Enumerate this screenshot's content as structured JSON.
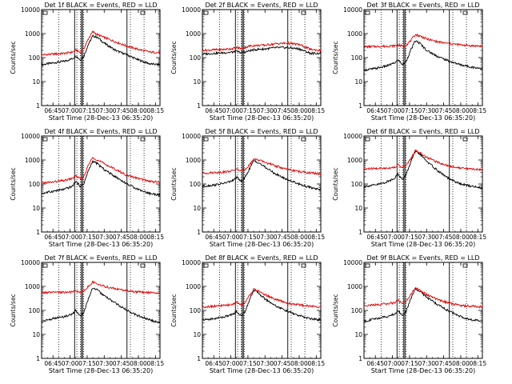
{
  "figure": {
    "xlabel": "Start Time (28-Dec-13 06:35:20)",
    "ylabel": "Counts/sec",
    "legend_text": "BLACK = Events, RED = LLD"
  },
  "axes": {
    "x_ticks": [
      "06:45",
      "07:00",
      "07:15",
      "07:30",
      "07:45",
      "08:00",
      "08:15"
    ],
    "x_range": [
      "06:35",
      "08:19"
    ],
    "y_ticks": [
      "1",
      "10",
      "100",
      "1000",
      "10000"
    ],
    "y_range": [
      1,
      10000
    ],
    "y_scale": "log",
    "dotted_vlines": [
      "06:50",
      "07:06",
      "07:09",
      "07:12",
      "07:53",
      "08:05"
    ],
    "solid_vlines": [
      "07:04",
      "07:10",
      "07:11",
      "07:50"
    ]
  },
  "colors": {
    "events": "#000000",
    "lld": "#dd0000"
  },
  "chart_data": [
    {
      "type": "line",
      "title": "Det 1f",
      "series": [
        {
          "name": "BLACK = Events",
          "x": [
            "06:35",
            "06:45",
            "06:55",
            "07:02",
            "07:05",
            "07:09",
            "07:12",
            "07:16",
            "07:20",
            "07:24",
            "07:30",
            "07:40",
            "07:50",
            "08:00",
            "08:10",
            "08:19"
          ],
          "y": [
            50,
            60,
            70,
            90,
            120,
            80,
            110,
            350,
            800,
            700,
            400,
            200,
            130,
            80,
            55,
            50
          ]
        },
        {
          "name": "RED = LLD",
          "x": [
            "06:35",
            "06:45",
            "06:55",
            "07:02",
            "07:05",
            "07:09",
            "07:12",
            "07:16",
            "07:20",
            "07:24",
            "07:30",
            "07:40",
            "07:50",
            "08:00",
            "08:10",
            "08:19"
          ],
          "y": [
            130,
            140,
            150,
            170,
            210,
            160,
            230,
            600,
            1200,
            900,
            700,
            450,
            300,
            220,
            170,
            160
          ]
        }
      ]
    },
    {
      "type": "line",
      "title": "Det 2f",
      "series": [
        {
          "name": "BLACK = Events",
          "x": [
            "06:35",
            "06:45",
            "06:55",
            "07:02",
            "07:05",
            "07:09",
            "07:12",
            "07:16",
            "07:20",
            "07:24",
            "07:30",
            "07:40",
            "07:50",
            "08:00",
            "08:10",
            "08:19"
          ],
          "y": [
            140,
            150,
            160,
            170,
            180,
            160,
            170,
            190,
            210,
            220,
            230,
            260,
            260,
            230,
            150,
            150
          ]
        },
        {
          "name": "RED = LLD",
          "x": [
            "06:35",
            "06:45",
            "06:55",
            "07:02",
            "07:05",
            "07:09",
            "07:12",
            "07:16",
            "07:20",
            "07:24",
            "07:30",
            "07:40",
            "07:50",
            "08:00",
            "08:10",
            "08:19"
          ],
          "y": [
            200,
            210,
            220,
            240,
            260,
            240,
            260,
            300,
            320,
            320,
            330,
            380,
            400,
            350,
            220,
            200
          ]
        }
      ]
    },
    {
      "type": "line",
      "title": "Det 3f",
      "series": [
        {
          "name": "BLACK = Events",
          "x": [
            "06:35",
            "06:45",
            "06:55",
            "07:02",
            "07:05",
            "07:09",
            "07:12",
            "07:16",
            "07:20",
            "07:24",
            "07:30",
            "07:40",
            "07:50",
            "08:00",
            "08:10",
            "08:19"
          ],
          "y": [
            30,
            35,
            45,
            60,
            80,
            50,
            70,
            200,
            500,
            400,
            200,
            110,
            70,
            50,
            40,
            35
          ]
        },
        {
          "name": "RED = LLD",
          "x": [
            "06:35",
            "06:45",
            "06:55",
            "07:02",
            "07:05",
            "07:09",
            "07:12",
            "07:16",
            "07:20",
            "07:24",
            "07:30",
            "07:40",
            "07:50",
            "08:00",
            "08:10",
            "08:19"
          ],
          "y": [
            280,
            290,
            300,
            310,
            330,
            300,
            330,
            500,
            900,
            800,
            600,
            450,
            380,
            340,
            310,
            300
          ]
        }
      ]
    },
    {
      "type": "line",
      "title": "Det 4f",
      "series": [
        {
          "name": "BLACK = Events",
          "x": [
            "06:35",
            "06:45",
            "06:55",
            "07:02",
            "07:05",
            "07:09",
            "07:12",
            "07:16",
            "07:20",
            "07:24",
            "07:30",
            "07:40",
            "07:50",
            "08:00",
            "08:10",
            "08:19"
          ],
          "y": [
            40,
            50,
            60,
            80,
            130,
            80,
            100,
            350,
            900,
            700,
            400,
            200,
            100,
            60,
            40,
            35
          ]
        },
        {
          "name": "RED = LLD",
          "x": [
            "06:35",
            "06:45",
            "06:55",
            "07:02",
            "07:05",
            "07:09",
            "07:12",
            "07:16",
            "07:20",
            "07:24",
            "07:30",
            "07:40",
            "07:50",
            "08:00",
            "08:10",
            "08:19"
          ],
          "y": [
            110,
            120,
            140,
            170,
            220,
            160,
            200,
            600,
            1300,
            1000,
            700,
            400,
            230,
            170,
            130,
            120
          ]
        }
      ]
    },
    {
      "type": "line",
      "title": "Det 5f",
      "series": [
        {
          "name": "BLACK = Events",
          "x": [
            "06:35",
            "06:45",
            "06:55",
            "07:02",
            "07:05",
            "07:09",
            "07:12",
            "07:16",
            "07:20",
            "07:24",
            "07:30",
            "07:40",
            "07:50",
            "08:00",
            "08:10",
            "08:19"
          ],
          "y": [
            80,
            90,
            110,
            140,
            190,
            130,
            170,
            400,
            900,
            800,
            500,
            250,
            150,
            100,
            70,
            60
          ]
        },
        {
          "name": "RED = LLD",
          "x": [
            "06:35",
            "06:45",
            "06:55",
            "07:02",
            "07:05",
            "07:09",
            "07:12",
            "07:16",
            "07:20",
            "07:24",
            "07:30",
            "07:40",
            "07:50",
            "08:00",
            "08:10",
            "08:19"
          ],
          "y": [
            280,
            300,
            320,
            360,
            420,
            350,
            400,
            600,
            1100,
            1000,
            800,
            550,
            400,
            330,
            290,
            260
          ]
        }
      ]
    },
    {
      "type": "line",
      "title": "Det 6f",
      "series": [
        {
          "name": "BLACK = Events",
          "x": [
            "06:35",
            "06:45",
            "06:55",
            "07:02",
            "07:05",
            "07:09",
            "07:12",
            "07:16",
            "07:20",
            "07:24",
            "07:30",
            "07:40",
            "07:50",
            "08:00",
            "08:10",
            "08:19"
          ],
          "y": [
            80,
            90,
            120,
            180,
            260,
            150,
            250,
            800,
            2200,
            1800,
            900,
            350,
            160,
            100,
            80,
            70
          ]
        },
        {
          "name": "RED = LLD",
          "x": [
            "06:35",
            "06:45",
            "06:55",
            "07:02",
            "07:05",
            "07:09",
            "07:12",
            "07:16",
            "07:20",
            "07:24",
            "07:30",
            "07:40",
            "07:50",
            "08:00",
            "08:10",
            "08:19"
          ],
          "y": [
            420,
            440,
            460,
            500,
            620,
            480,
            600,
            1100,
            2500,
            2000,
            1300,
            800,
            560,
            460,
            420,
            400
          ]
        }
      ]
    },
    {
      "type": "line",
      "title": "Det 7f",
      "series": [
        {
          "name": "BLACK = Events",
          "x": [
            "06:35",
            "06:45",
            "06:55",
            "07:02",
            "07:05",
            "07:09",
            "07:12",
            "07:16",
            "07:20",
            "07:24",
            "07:30",
            "07:40",
            "07:50",
            "08:00",
            "08:10",
            "08:19"
          ],
          "y": [
            35,
            45,
            55,
            70,
            100,
            60,
            80,
            300,
            900,
            700,
            400,
            200,
            100,
            60,
            40,
            30
          ]
        },
        {
          "name": "RED = LLD",
          "x": [
            "06:35",
            "06:45",
            "06:55",
            "07:02",
            "07:05",
            "07:09",
            "07:12",
            "07:16",
            "07:20",
            "07:24",
            "07:30",
            "07:40",
            "07:50",
            "08:00",
            "08:10",
            "08:19"
          ],
          "y": [
            550,
            560,
            570,
            580,
            640,
            560,
            640,
            1000,
            1500,
            1300,
            1000,
            800,
            650,
            580,
            560,
            550
          ]
        }
      ]
    },
    {
      "type": "line",
      "title": "Det 8f",
      "series": [
        {
          "name": "BLACK = Events",
          "x": [
            "06:35",
            "06:45",
            "06:55",
            "07:02",
            "07:05",
            "07:09",
            "07:12",
            "07:16",
            "07:20",
            "07:24",
            "07:30",
            "07:40",
            "07:50",
            "08:00",
            "08:10",
            "08:19"
          ],
          "y": [
            40,
            45,
            55,
            70,
            90,
            60,
            80,
            250,
            700,
            550,
            300,
            150,
            90,
            60,
            45,
            40
          ]
        },
        {
          "name": "RED = LLD",
          "x": [
            "06:35",
            "06:45",
            "06:55",
            "07:02",
            "07:05",
            "07:09",
            "07:12",
            "07:16",
            "07:20",
            "07:24",
            "07:30",
            "07:40",
            "07:50",
            "08:00",
            "08:10",
            "08:19"
          ],
          "y": [
            140,
            150,
            160,
            180,
            220,
            170,
            200,
            400,
            750,
            650,
            450,
            280,
            200,
            170,
            150,
            140
          ]
        }
      ]
    },
    {
      "type": "line",
      "title": "Det 9f",
      "series": [
        {
          "name": "BLACK = Events",
          "x": [
            "06:35",
            "06:45",
            "06:55",
            "07:02",
            "07:05",
            "07:09",
            "07:12",
            "07:16",
            "07:20",
            "07:24",
            "07:30",
            "07:40",
            "07:50",
            "08:00",
            "08:10",
            "08:19"
          ],
          "y": [
            35,
            45,
            55,
            70,
            100,
            60,
            90,
            300,
            800,
            650,
            350,
            170,
            90,
            55,
            40,
            35
          ]
        },
        {
          "name": "RED = LLD",
          "x": [
            "06:35",
            "06:45",
            "06:55",
            "07:02",
            "07:05",
            "07:09",
            "07:12",
            "07:16",
            "07:20",
            "07:24",
            "07:30",
            "07:40",
            "07:50",
            "08:00",
            "08:10",
            "08:19"
          ],
          "y": [
            160,
            170,
            190,
            210,
            260,
            200,
            240,
            450,
            850,
            700,
            450,
            280,
            200,
            160,
            150,
            140
          ]
        }
      ]
    }
  ]
}
